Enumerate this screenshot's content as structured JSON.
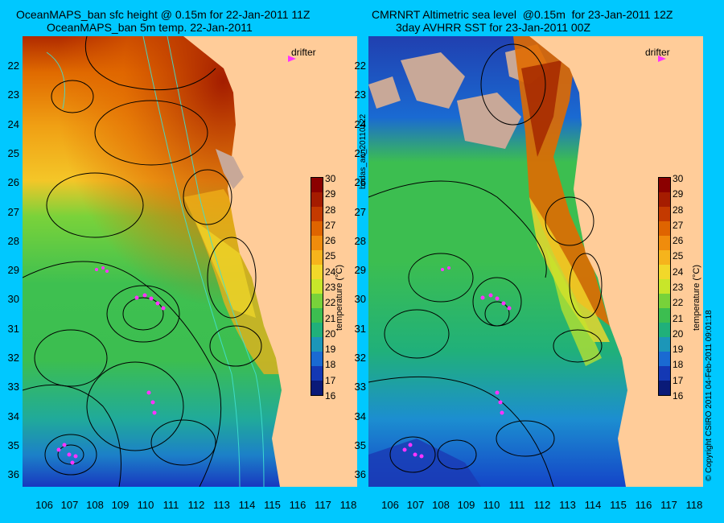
{
  "left": {
    "title_line1": "OceanMAPS_ban sfc height @ 0.15m for 22-Jan-2011 11Z",
    "title_line2": "OceanMAPS_ban 5m temp. 22-Jan-2011"
  },
  "right": {
    "title_line1": "CMRNRT Altimetric sea level  @0.15m  for 23-Jan-2011 12Z",
    "title_line2": "3day AVHRR SST for 23-Jan-2011 00Z"
  },
  "vertical_labels": {
    "run_id": "bodas_an_20110122",
    "copyright": "© Copyright CSIRO 2011   04-Feb-2011 09:01:18"
  },
  "drifter_label": "drifter",
  "colorbar": {
    "label": "temperature (°C)",
    "ticks": [
      "30",
      "29",
      "28",
      "27",
      "26",
      "25",
      "24",
      "23",
      "22",
      "21",
      "20",
      "19",
      "18",
      "17",
      "16"
    ],
    "colors": [
      "#8b0000",
      "#a51c00",
      "#c43a00",
      "#df6400",
      "#f08c0c",
      "#f6b41c",
      "#f2d82a",
      "#c8e62a",
      "#78d23a",
      "#3cbe50",
      "#20b07a",
      "#1c96b8",
      "#1a6ad2",
      "#1438b4",
      "#0a1a78"
    ]
  },
  "lat_ticks": [
    "22",
    "23",
    "24",
    "25",
    "26",
    "27",
    "28",
    "29",
    "30",
    "31",
    "32",
    "33",
    "34",
    "35",
    "36"
  ],
  "lon_ticks": [
    "106",
    "107",
    "108",
    "109",
    "110",
    "111",
    "112",
    "113",
    "114",
    "115",
    "116",
    "117",
    "118"
  ],
  "colors": {
    "background": "#00c8ff",
    "land": "#ffcc99",
    "cloud": "#c8a898",
    "drifter": "#ff33ff",
    "contour": "#000000",
    "bathymetry": "#40e0d0"
  }
}
